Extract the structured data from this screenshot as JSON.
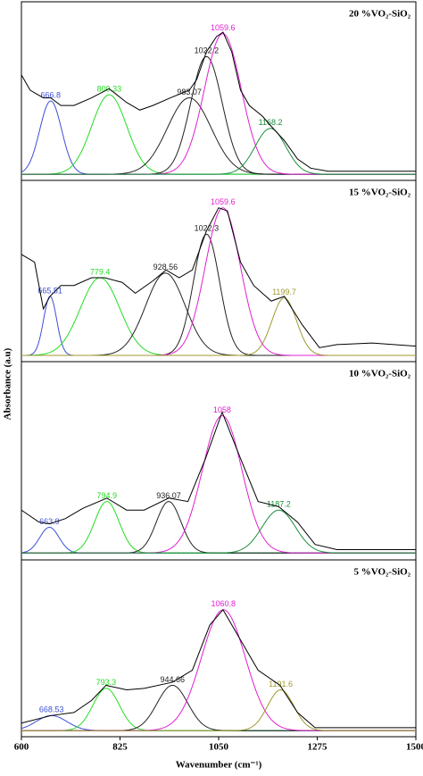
{
  "chart_data": [
    {
      "type": "line",
      "title": "20 %VO₂-SiO₂",
      "ylabel": "Absorbance (a.u)",
      "xlim": [
        600,
        1500
      ],
      "ylim": [
        -0.04,
        1
      ],
      "spectrum": {
        "color": "#000000",
        "x": [
          600,
          620,
          650,
          667,
          690,
          720,
          760,
          800,
          840,
          870,
          900,
          940,
          983,
          1000,
          1022,
          1045,
          1060,
          1080,
          1100,
          1120,
          1150,
          1168,
          1200,
          1230,
          1260,
          1300,
          1400,
          1500
        ],
        "values": [
          0.65,
          0.55,
          0.5,
          0.5,
          0.45,
          0.45,
          0.5,
          0.56,
          0.47,
          0.42,
          0.45,
          0.5,
          0.55,
          0.62,
          0.8,
          0.9,
          0.93,
          0.8,
          0.55,
          0.45,
          0.38,
          0.32,
          0.22,
          0.1,
          0.04,
          0.02,
          0.02,
          0.02
        ]
      },
      "peaks": [
        {
          "center": 666.8,
          "height": 0.48,
          "sigma": 25,
          "color": "#3b4fd6"
        },
        {
          "center": 800.33,
          "height": 0.52,
          "sigma": 40,
          "color": "#22dd22"
        },
        {
          "center": 983.07,
          "height": 0.5,
          "sigma": 50,
          "color": "#222222"
        },
        {
          "center": 1022.2,
          "height": 0.77,
          "sigma": 36,
          "color": "#222222"
        },
        {
          "center": 1059.6,
          "height": 0.92,
          "sigma": 42,
          "color": "#e020d0"
        },
        {
          "center": 1168.2,
          "height": 0.3,
          "sigma": 35,
          "color": "#1a8f3a"
        }
      ]
    },
    {
      "type": "line",
      "title": "15 %VO₂-SiO₂",
      "xlim": [
        600,
        1500
      ],
      "ylim": [
        -0.04,
        1
      ],
      "spectrum": {
        "color": "#000000",
        "x": [
          600,
          630,
          650,
          665,
          690,
          720,
          760,
          790,
          830,
          860,
          900,
          930,
          960,
          990,
          1022,
          1050,
          1070,
          1100,
          1130,
          1170,
          1200,
          1240,
          1280,
          1320,
          1400,
          1500
        ],
        "values": [
          0.65,
          0.6,
          0.3,
          0.38,
          0.45,
          0.45,
          0.5,
          0.5,
          0.47,
          0.4,
          0.48,
          0.55,
          0.5,
          0.55,
          0.8,
          0.95,
          0.93,
          0.6,
          0.45,
          0.35,
          0.38,
          0.2,
          0.05,
          0.07,
          0.08,
          0.06
        ]
      },
      "peaks": [
        {
          "center": 665.51,
          "height": 0.38,
          "sigma": 15,
          "color": "#3b4fd6"
        },
        {
          "center": 779.4,
          "height": 0.5,
          "sigma": 45,
          "color": "#22dd22"
        },
        {
          "center": 928.56,
          "height": 0.53,
          "sigma": 45,
          "color": "#222222"
        },
        {
          "center": 1022.3,
          "height": 0.78,
          "sigma": 30,
          "color": "#222222"
        },
        {
          "center": 1059.6,
          "height": 0.95,
          "sigma": 40,
          "color": "#e020d0"
        },
        {
          "center": 1199.7,
          "height": 0.37,
          "sigma": 28,
          "color": "#a09a30"
        }
      ]
    },
    {
      "type": "line",
      "title": "10 %VO₂-SiO₂",
      "xlim": [
        600,
        1500
      ],
      "ylim": [
        -0.04,
        1
      ],
      "spectrum": {
        "color": "#000000",
        "x": [
          600,
          640,
          664,
          700,
          740,
          795,
          840,
          880,
          936,
          980,
          1020,
          1058,
          1100,
          1140,
          1187,
          1230,
          1270,
          1320,
          1400,
          1500
        ],
        "values": [
          0.25,
          0.18,
          0.17,
          0.2,
          0.26,
          0.32,
          0.25,
          0.25,
          0.32,
          0.3,
          0.55,
          0.82,
          0.55,
          0.3,
          0.27,
          0.18,
          0.05,
          0.02,
          0.02,
          0.02
        ]
      },
      "peaks": [
        {
          "center": 663.9,
          "height": 0.15,
          "sigma": 22,
          "color": "#3b4fd6"
        },
        {
          "center": 794.9,
          "height": 0.3,
          "sigma": 28,
          "color": "#22dd22"
        },
        {
          "center": 936.07,
          "height": 0.3,
          "sigma": 28,
          "color": "#222222"
        },
        {
          "center": 1058,
          "height": 0.8,
          "sigma": 45,
          "color": "#e020d0"
        },
        {
          "center": 1187.2,
          "height": 0.25,
          "sigma": 38,
          "color": "#1a8f3a"
        }
      ]
    },
    {
      "type": "line",
      "title": "5 %VO₂-SiO₂",
      "xlabel": "Wavenumber (cm⁻¹)",
      "xlim": [
        600,
        1500
      ],
      "ylim": [
        -0.04,
        1
      ],
      "xticks": [
        600,
        825,
        1050,
        1275,
        1500
      ],
      "spectrum": {
        "color": "#000000",
        "x": [
          600,
          668,
          720,
          760,
          793,
          840,
          880,
          944,
          990,
          1030,
          1060,
          1100,
          1140,
          1190,
          1230,
          1270,
          1500
        ],
        "values": [
          0.05,
          0.1,
          0.12,
          0.2,
          0.3,
          0.27,
          0.28,
          0.32,
          0.4,
          0.7,
          0.8,
          0.6,
          0.4,
          0.3,
          0.12,
          0.02,
          0.02
        ]
      },
      "peaks": [
        {
          "center": 668.53,
          "height": 0.1,
          "sigma": 35,
          "color": "#3b4fd6"
        },
        {
          "center": 793.3,
          "height": 0.28,
          "sigma": 30,
          "color": "#22dd22"
        },
        {
          "center": 944.66,
          "height": 0.3,
          "sigma": 35,
          "color": "#222222"
        },
        {
          "center": 1060.8,
          "height": 0.8,
          "sigma": 50,
          "color": "#e020d0"
        },
        {
          "center": 1191.6,
          "height": 0.27,
          "sigma": 30,
          "color": "#a09a30"
        }
      ]
    }
  ]
}
